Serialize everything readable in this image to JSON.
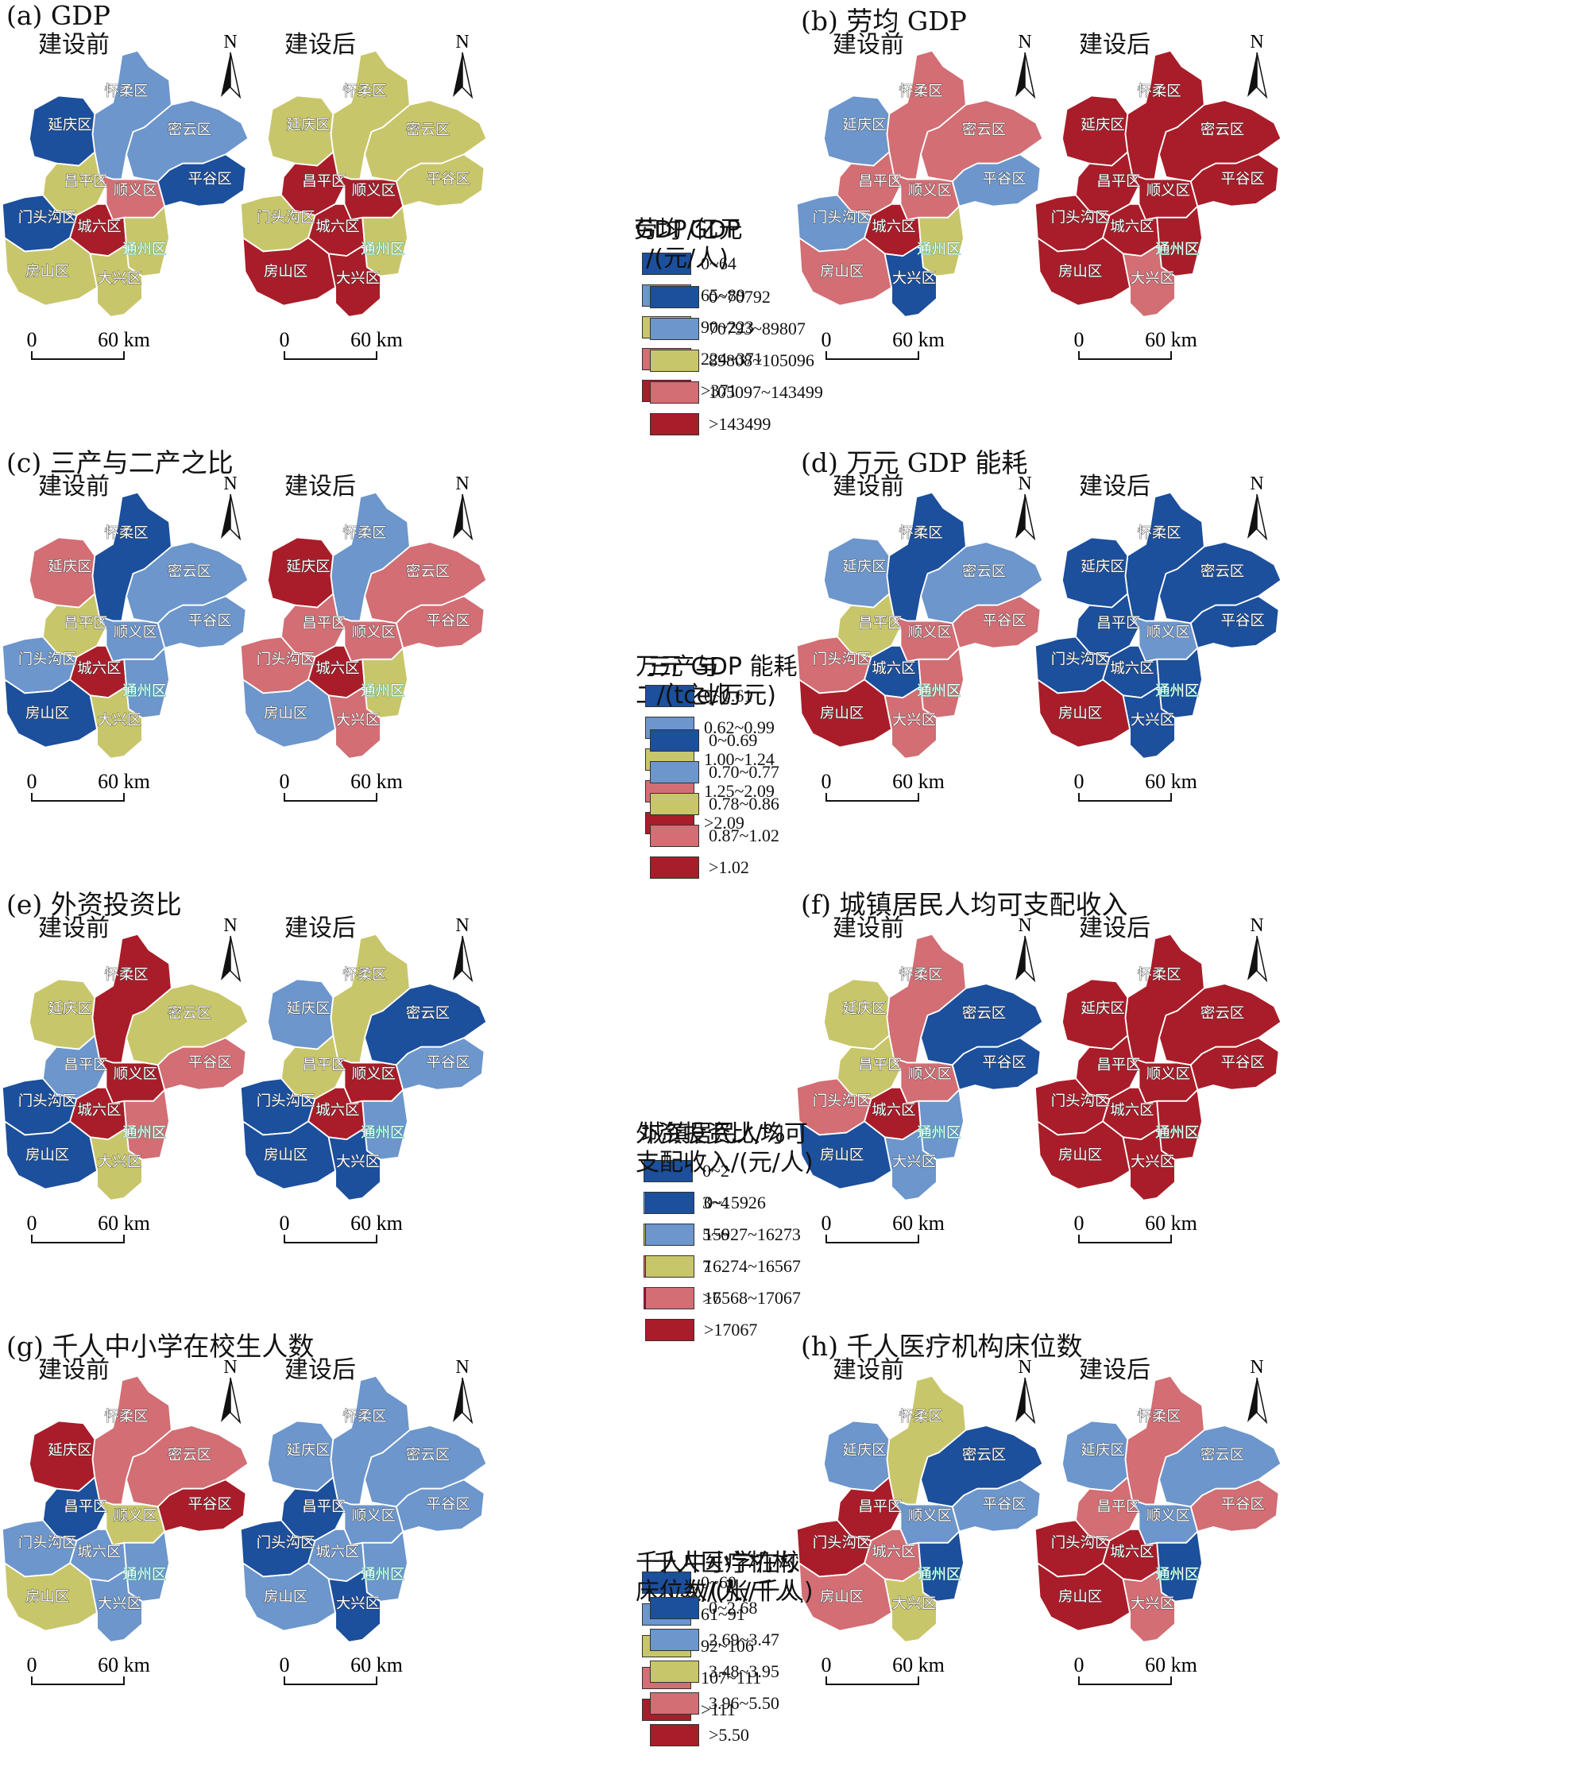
{
  "colors": [
    "#1c4f9c",
    "#6c96cc",
    "#c8c66a",
    "#d26e74",
    "#a81d29"
  ],
  "map_common": {
    "before_label": "建设前",
    "after_label": "建设后",
    "north_label": "N",
    "scale_0": "0",
    "scale_60": "60 km",
    "districts": [
      "怀柔区",
      "延庆区",
      "密云区",
      "昌平区",
      "顺义区",
      "平谷区",
      "门头沟区",
      "城六区",
      "通州区",
      "房山区",
      "大兴区"
    ]
  },
  "panels": [
    {
      "title": "(a) GDP",
      "legend_title": [
        "GDP/亿元"
      ],
      "legend": [
        "0~64",
        "65~89",
        "90~223",
        "224~371",
        ">371"
      ],
      "before": [
        1,
        0,
        1,
        2,
        3,
        0,
        0,
        4,
        2,
        2,
        2
      ],
      "after": [
        2,
        2,
        2,
        4,
        4,
        2,
        2,
        4,
        2,
        4,
        4
      ]
    },
    {
      "title": "(b) 劳均 GDP",
      "legend_title": [
        "劳均 GDP",
        "/(元/人)"
      ],
      "legend": [
        "0~70792",
        "70793~89807",
        "89808~105096",
        "105097~143499",
        ">143499"
      ],
      "before": [
        3,
        1,
        3,
        3,
        3,
        1,
        1,
        4,
        2,
        3,
        0
      ],
      "after": [
        4,
        4,
        4,
        4,
        4,
        4,
        4,
        4,
        4,
        4,
        3
      ]
    },
    {
      "title": "(c) 三产与二产之比",
      "legend_title": [
        "三产与",
        "二产之比"
      ],
      "legend": [
        "0~0.61",
        "0.62~0.99",
        "1.00~1.24",
        "1.25~2.09",
        ">2.09"
      ],
      "before": [
        0,
        3,
        1,
        2,
        1,
        1,
        1,
        4,
        1,
        0,
        2
      ],
      "after": [
        1,
        4,
        3,
        3,
        3,
        3,
        3,
        4,
        2,
        1,
        3
      ]
    },
    {
      "title": "(d) 万元 GDP 能耗",
      "legend_title": [
        "万元 GDP 能耗",
        "/(tce/万元)"
      ],
      "legend": [
        "0~0.69",
        "0.70~0.77",
        "0.78~0.86",
        "0.87~1.02",
        ">1.02"
      ],
      "before": [
        0,
        1,
        1,
        2,
        3,
        3,
        3,
        0,
        3,
        4,
        3
      ],
      "after": [
        0,
        0,
        0,
        0,
        1,
        0,
        0,
        0,
        0,
        4,
        0
      ]
    },
    {
      "title": "(e) 外资投资比",
      "legend_title": [
        "外资投资比/%"
      ],
      "legend": [
        "0~2",
        "3~4",
        "5~6",
        "7",
        ">7"
      ],
      "before": [
        4,
        2,
        2,
        1,
        4,
        3,
        0,
        4,
        3,
        0,
        2
      ],
      "after": [
        2,
        1,
        0,
        2,
        4,
        1,
        0,
        4,
        1,
        0,
        0
      ]
    },
    {
      "title": "(f) 城镇居民人均可支配收入",
      "legend_title": [
        "城镇居民人均可",
        "支配收入/(元/人)"
      ],
      "legend": [
        "0~15926",
        "15927~16273",
        "16274~16567",
        "16568~17067",
        ">17067"
      ],
      "before": [
        3,
        2,
        0,
        2,
        3,
        0,
        3,
        4,
        1,
        0,
        1
      ],
      "after": [
        4,
        4,
        4,
        4,
        4,
        4,
        4,
        4,
        4,
        4,
        4
      ]
    },
    {
      "title": "(g) 千人中小学在校生人数",
      "legend_title": [
        "千人中小学在校生",
        "人数/(人/千人)"
      ],
      "legend": [
        "0~60",
        "61~91",
        "92~106",
        "107~111",
        ">111"
      ],
      "before": [
        3,
        4,
        3,
        0,
        2,
        4,
        1,
        1,
        1,
        2,
        1
      ],
      "after": [
        1,
        1,
        1,
        0,
        1,
        1,
        0,
        1,
        1,
        1,
        0
      ]
    },
    {
      "title": "(h) 千人医疗机构床位数",
      "legend_title": [
        "千人医疗机构",
        "床位数/(张/千人)"
      ],
      "legend": [
        "0~2.68",
        "2.69~3.47",
        "3.48~3.95",
        "3.96~5.50",
        ">5.50"
      ],
      "before": [
        2,
        1,
        0,
        4,
        1,
        1,
        4,
        3,
        0,
        3,
        2
      ],
      "after": [
        3,
        1,
        1,
        3,
        1,
        3,
        4,
        4,
        0,
        4,
        3
      ]
    }
  ]
}
